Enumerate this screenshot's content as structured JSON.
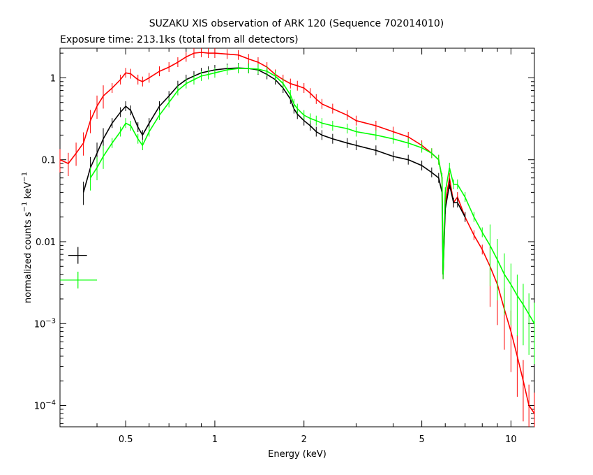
{
  "chart_data": {
    "type": "scatter",
    "title": "SUZAKU XIS observation of ARK 120 (Sequence 702014010)",
    "subtitle": "Exposure time: 213.1ks (total from all detectors)",
    "xlabel": "Energy (keV)",
    "ylabel_prefix": "normalized counts s",
    "ylabel_exp1": "−1",
    "ylabel_mid": " keV",
    "ylabel_exp2": "−1",
    "x_scale": "log",
    "y_scale": "log",
    "xlim": [
      0.3,
      12
    ],
    "ylim": [
      5.5e-05,
      2.3
    ],
    "x_ticks": [
      {
        "value": 0.5,
        "label": "0.5"
      },
      {
        "value": 1,
        "label": "1"
      },
      {
        "value": 2,
        "label": "2"
      },
      {
        "value": 5,
        "label": "5"
      },
      {
        "value": 10,
        "label": "10"
      }
    ],
    "y_ticks": [
      {
        "value": 1,
        "label": "1",
        "exp": ""
      },
      {
        "value": 0.1,
        "label": "0.1",
        "exp": ""
      },
      {
        "value": 0.01,
        "label": "0.01",
        "exp": ""
      },
      {
        "value": 0.001,
        "label": "10",
        "exp": "−3"
      },
      {
        "value": 0.0001,
        "label": "10",
        "exp": "−4"
      }
    ],
    "grid": false,
    "legend": "none",
    "series": [
      {
        "color": "#ff0000",
        "x": [
          0.3,
          0.32,
          0.34,
          0.36,
          0.38,
          0.4,
          0.42,
          0.45,
          0.48,
          0.5,
          0.52,
          0.55,
          0.57,
          0.6,
          0.65,
          0.7,
          0.75,
          0.8,
          0.85,
          0.9,
          0.95,
          1.0,
          1.1,
          1.2,
          1.3,
          1.4,
          1.5,
          1.6,
          1.7,
          1.8,
          1.9,
          2.0,
          2.1,
          2.2,
          2.3,
          2.5,
          2.8,
          3.0,
          3.5,
          4.0,
          4.5,
          5.0,
          5.4,
          5.7,
          5.85,
          5.9,
          6.0,
          6.2,
          6.4,
          6.6,
          7.0,
          7.5,
          8.0,
          8.5,
          9.0,
          9.5,
          10.0,
          10.5,
          11.0,
          11.5,
          12.0
        ],
        "y": [
          0.1,
          0.09,
          0.12,
          0.16,
          0.3,
          0.45,
          0.6,
          0.75,
          0.95,
          1.15,
          1.12,
          0.95,
          0.9,
          1.0,
          1.2,
          1.35,
          1.55,
          1.8,
          2.0,
          2.05,
          2.0,
          2.0,
          1.95,
          1.9,
          1.7,
          1.55,
          1.35,
          1.1,
          0.95,
          0.85,
          0.8,
          0.75,
          0.65,
          0.55,
          0.48,
          0.42,
          0.35,
          0.3,
          0.26,
          0.22,
          0.19,
          0.15,
          0.12,
          0.1,
          0.06,
          0.004,
          0.03,
          0.06,
          0.03,
          0.035,
          0.02,
          0.012,
          0.008,
          0.005,
          0.003,
          0.0015,
          0.0008,
          0.0004,
          0.0002,
          0.0001,
          8e-05
        ]
      },
      {
        "color": "#000000",
        "x": [
          0.36,
          0.38,
          0.4,
          0.42,
          0.45,
          0.48,
          0.5,
          0.52,
          0.55,
          0.57,
          0.6,
          0.65,
          0.7,
          0.75,
          0.8,
          0.85,
          0.9,
          0.95,
          1.0,
          1.1,
          1.2,
          1.3,
          1.4,
          1.5,
          1.6,
          1.7,
          1.8,
          1.85,
          1.9,
          2.0,
          2.1,
          2.2,
          2.3,
          2.5,
          2.8,
          3.0,
          3.5,
          4.0,
          4.5,
          5.0,
          5.4,
          5.7,
          5.85,
          5.9,
          6.0,
          6.2,
          6.4,
          6.6,
          7.0
        ],
        "y": [
          0.04,
          0.08,
          0.12,
          0.18,
          0.28,
          0.38,
          0.45,
          0.4,
          0.25,
          0.2,
          0.28,
          0.45,
          0.6,
          0.8,
          0.95,
          1.05,
          1.15,
          1.2,
          1.25,
          1.3,
          1.32,
          1.3,
          1.25,
          1.1,
          0.95,
          0.75,
          0.55,
          0.42,
          0.36,
          0.3,
          0.26,
          0.22,
          0.2,
          0.18,
          0.16,
          0.15,
          0.13,
          0.11,
          0.1,
          0.085,
          0.07,
          0.06,
          0.04,
          0.004,
          0.025,
          0.05,
          0.03,
          0.03,
          0.02
        ]
      },
      {
        "color": "#00ff00",
        "x": [
          0.38,
          0.4,
          0.42,
          0.45,
          0.48,
          0.5,
          0.52,
          0.55,
          0.57,
          0.6,
          0.65,
          0.7,
          0.75,
          0.8,
          0.85,
          0.9,
          0.95,
          1.0,
          1.1,
          1.2,
          1.3,
          1.4,
          1.5,
          1.6,
          1.7,
          1.8,
          1.85,
          1.9,
          2.0,
          2.1,
          2.2,
          2.3,
          2.5,
          2.8,
          3.0,
          3.5,
          4.0,
          4.5,
          5.0,
          5.4,
          5.7,
          5.85,
          5.9,
          6.0,
          6.2,
          6.4,
          6.6,
          7.0,
          7.5,
          8.0,
          8.5,
          9.0,
          9.5,
          10.0,
          10.5,
          11.0,
          11.5,
          12.0
        ],
        "y": [
          0.06,
          0.08,
          0.11,
          0.16,
          0.22,
          0.28,
          0.26,
          0.18,
          0.15,
          0.22,
          0.35,
          0.5,
          0.7,
          0.85,
          0.95,
          1.05,
          1.1,
          1.15,
          1.25,
          1.3,
          1.3,
          1.28,
          1.2,
          1.05,
          0.85,
          0.62,
          0.48,
          0.42,
          0.35,
          0.32,
          0.3,
          0.28,
          0.26,
          0.24,
          0.22,
          0.2,
          0.18,
          0.16,
          0.14,
          0.12,
          0.1,
          0.06,
          0.004,
          0.04,
          0.08,
          0.05,
          0.05,
          0.035,
          0.02,
          0.013,
          0.009,
          0.006,
          0.004,
          0.003,
          0.0022,
          0.0017,
          0.0013,
          0.001
        ]
      }
    ],
    "legend_marks": [
      {
        "color": "#000000",
        "x": 0.345,
        "y": 0.0068,
        "xerr": [
          0.32,
          0.37
        ]
      },
      {
        "color": "#00ff00",
        "x": 0.345,
        "y": 0.0034,
        "xerr": [
          0.3,
          0.4
        ]
      }
    ]
  }
}
